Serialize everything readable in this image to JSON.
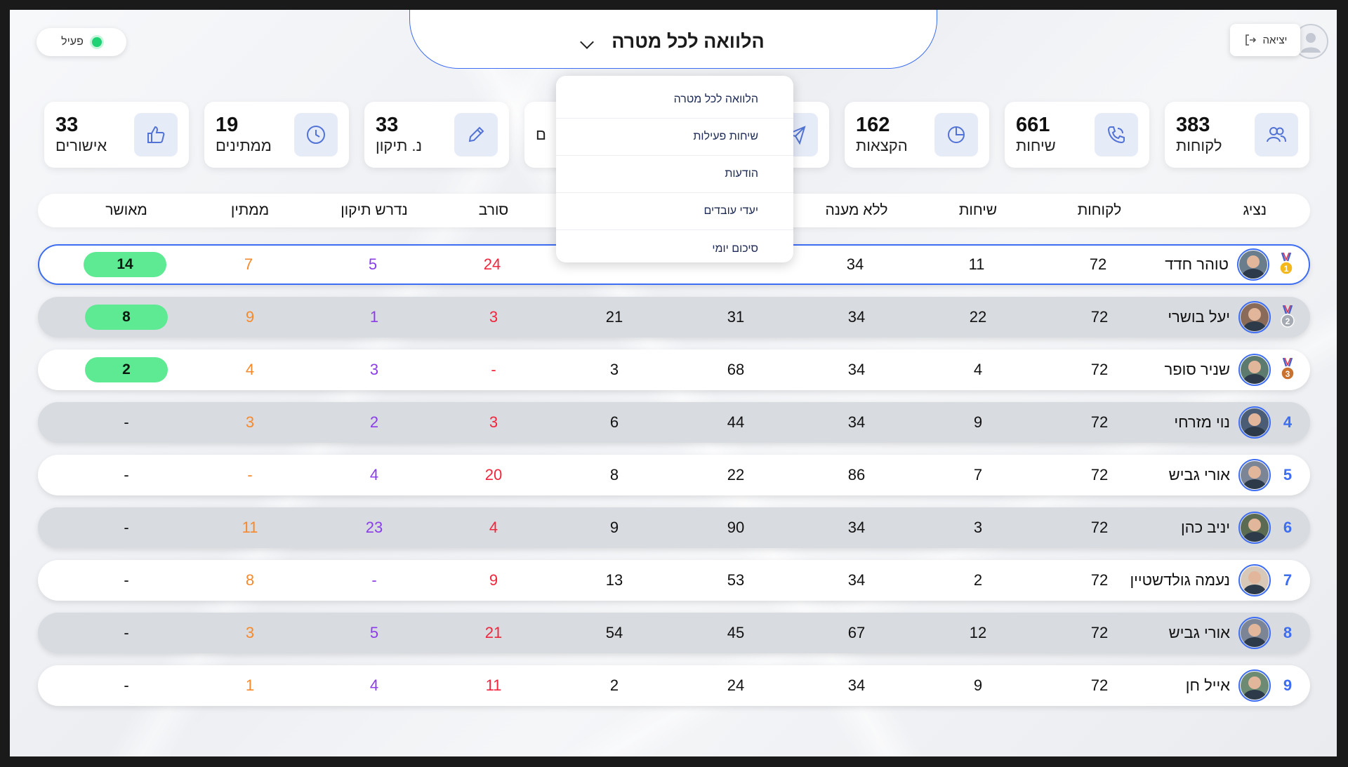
{
  "header": {
    "logout_label": "יציאה",
    "status_label": "פעיל",
    "selector_title": "הלוואה לכל מטרה"
  },
  "stats": [
    {
      "value": "383",
      "label": "לקוחות",
      "icon": "users-icon"
    },
    {
      "value": "661",
      "label": "שיחות",
      "icon": "phone-icon"
    },
    {
      "value": "162",
      "label": "הקצאות",
      "icon": "pie-chart-icon"
    },
    {
      "value": "",
      "label": "",
      "icon": "send-icon"
    },
    {
      "value": "",
      "label": "ם",
      "icon": "pending-icon"
    },
    {
      "value": "33",
      "label": "נ. תיקון",
      "icon": "pencil-icon"
    },
    {
      "value": "19",
      "label": "ממתינים",
      "icon": "clock-icon"
    },
    {
      "value": "33",
      "label": "אישורים",
      "icon": "thumbs-up-icon"
    }
  ],
  "dropdown": {
    "items": [
      "הלוואה לכל מטרה",
      "שיחות פעילות",
      "הודעות",
      "יעדי עובדים",
      "סיכום יומי"
    ]
  },
  "table": {
    "headers": {
      "agent": "נציג",
      "customers": "לקוחות",
      "calls": "שיחות",
      "no_answer": "ללא מענה",
      "col5": "",
      "col6": "",
      "rejected": "סורב",
      "needs_fix": "נדרש תיקון",
      "waiting": "ממתין",
      "approved": "מאושר"
    },
    "rows": [
      {
        "rank": "1",
        "medal": "gold",
        "name": "טוהר חדד",
        "customers": "72",
        "calls": "11",
        "no_answer": "34",
        "col5": "",
        "col6": "",
        "rejected": "24",
        "needs_fix": "5",
        "waiting": "7",
        "approved": "14",
        "style": "first"
      },
      {
        "rank": "2",
        "medal": "silver",
        "name": "יעל בושרי",
        "customers": "72",
        "calls": "22",
        "no_answer": "34",
        "col5": "31",
        "col6": "21",
        "rejected": "3",
        "needs_fix": "1",
        "waiting": "9",
        "approved": "8",
        "style": "gray"
      },
      {
        "rank": "3",
        "medal": "bronze",
        "name": "שניר סופר",
        "customers": "72",
        "calls": "4",
        "no_answer": "34",
        "col5": "68",
        "col6": "3",
        "rejected": "-",
        "needs_fix": "3",
        "waiting": "4",
        "approved": "2",
        "style": "white"
      },
      {
        "rank": "4",
        "medal": "",
        "name": "נוי מזרחי",
        "customers": "72",
        "calls": "9",
        "no_answer": "34",
        "col5": "44",
        "col6": "6",
        "rejected": "3",
        "needs_fix": "2",
        "waiting": "3",
        "approved": "-",
        "style": "gray"
      },
      {
        "rank": "5",
        "medal": "",
        "name": "אורי גביש",
        "customers": "72",
        "calls": "7",
        "no_answer": "86",
        "col5": "22",
        "col6": "8",
        "rejected": "20",
        "needs_fix": "4",
        "waiting": "-",
        "approved": "-",
        "style": "white"
      },
      {
        "rank": "6",
        "medal": "",
        "name": "יניב כהן",
        "customers": "72",
        "calls": "3",
        "no_answer": "34",
        "col5": "90",
        "col6": "9",
        "rejected": "4",
        "needs_fix": "23",
        "waiting": "11",
        "approved": "-",
        "style": "gray"
      },
      {
        "rank": "7",
        "medal": "",
        "name": "נעמה גולדשטיין",
        "customers": "72",
        "calls": "2",
        "no_answer": "34",
        "col5": "53",
        "col6": "13",
        "rejected": "9",
        "needs_fix": "-",
        "waiting": "8",
        "approved": "-",
        "style": "white"
      },
      {
        "rank": "8",
        "medal": "",
        "name": "אורי גביש",
        "customers": "72",
        "calls": "12",
        "no_answer": "67",
        "col5": "45",
        "col6": "54",
        "rejected": "21",
        "needs_fix": "5",
        "waiting": "3",
        "approved": "-",
        "style": "gray"
      },
      {
        "rank": "9",
        "medal": "",
        "name": "אייל חן",
        "customers": "72",
        "calls": "9",
        "no_answer": "34",
        "col5": "24",
        "col6": "2",
        "rejected": "11",
        "needs_fix": "4",
        "waiting": "1",
        "approved": "-",
        "style": "white"
      }
    ]
  },
  "colors": {
    "accent": "#3d6df2",
    "rejected": "#f0263c",
    "needs_fix": "#8b3ee8",
    "waiting": "#f7892b",
    "approved_badge": "#5eea93"
  }
}
